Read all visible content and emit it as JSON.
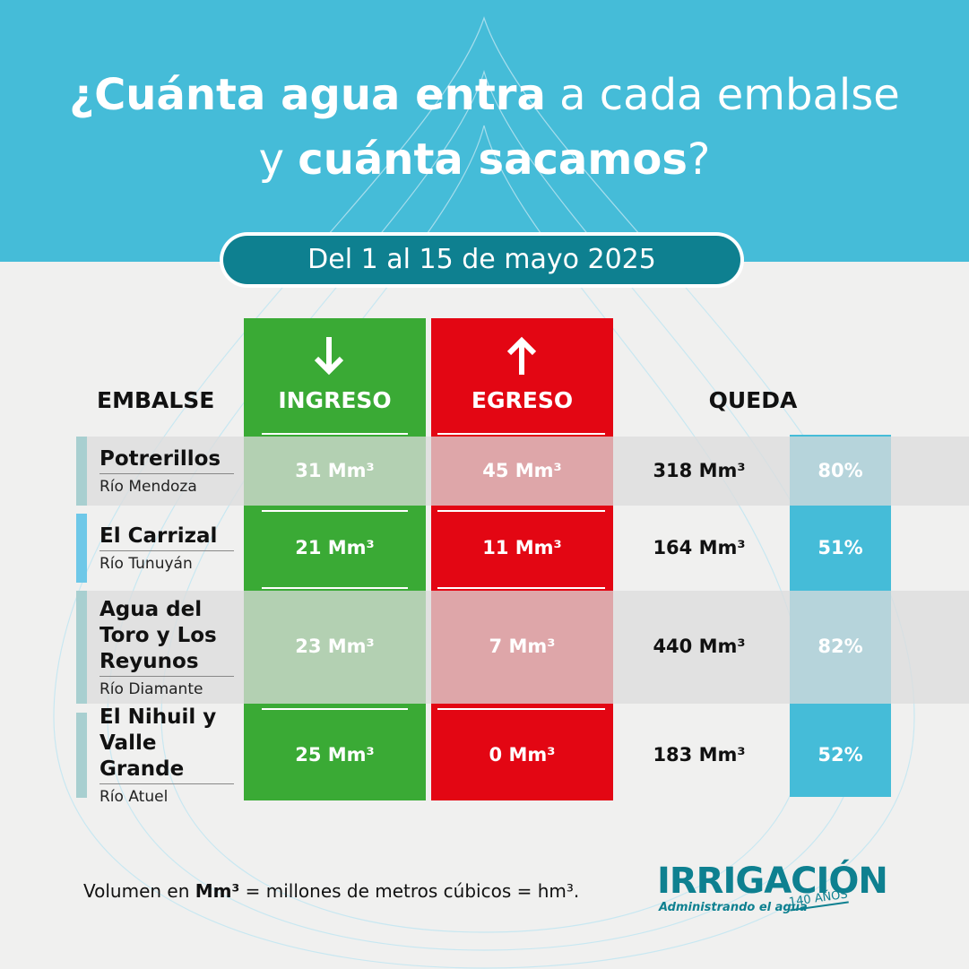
{
  "header": {
    "title_line1": [
      "¿Cuánta agua entra",
      " a cada embalse"
    ],
    "title_line2": [
      "y ",
      "cuánta sacamos",
      "?"
    ],
    "period": "Del 1 al 15 de mayo 2025"
  },
  "table": {
    "columns": [
      "EMBALSE",
      "INGRESO",
      "EGRESO",
      "QUEDA"
    ],
    "rows": [
      {
        "name": "Potrerillos",
        "river": "Río Mendoza",
        "ingreso": "31 Mm³",
        "egreso": "45 Mm³",
        "volume": "318 Mm³",
        "percent": "80%"
      },
      {
        "name": "El Carrizal",
        "river": "Río Tunuyán",
        "ingreso": "21 Mm³",
        "egreso": "11 Mm³",
        "volume": "164 Mm³",
        "percent": "51%"
      },
      {
        "name": "Agua del Toro y Los Reyunos",
        "river": "Río Diamante",
        "ingreso": "23 Mm³",
        "egreso": "7 Mm³",
        "volume": "440 Mm³",
        "percent": "82%"
      },
      {
        "name": "El Nihuil y Valle Grande",
        "river": "Río Atuel",
        "ingreso": "25 Mm³",
        "egreso": "0 Mm³",
        "volume": "183 Mm³",
        "percent": "52%"
      }
    ]
  },
  "footer": {
    "note": [
      "Volumen en ",
      "Mm³",
      " = millones de metros cúbicos = hm³."
    ],
    "logo": {
      "name": "IRRIGACIÓN",
      "tagline": "Administrando el agua",
      "badge": "140 AÑOS"
    }
  }
}
